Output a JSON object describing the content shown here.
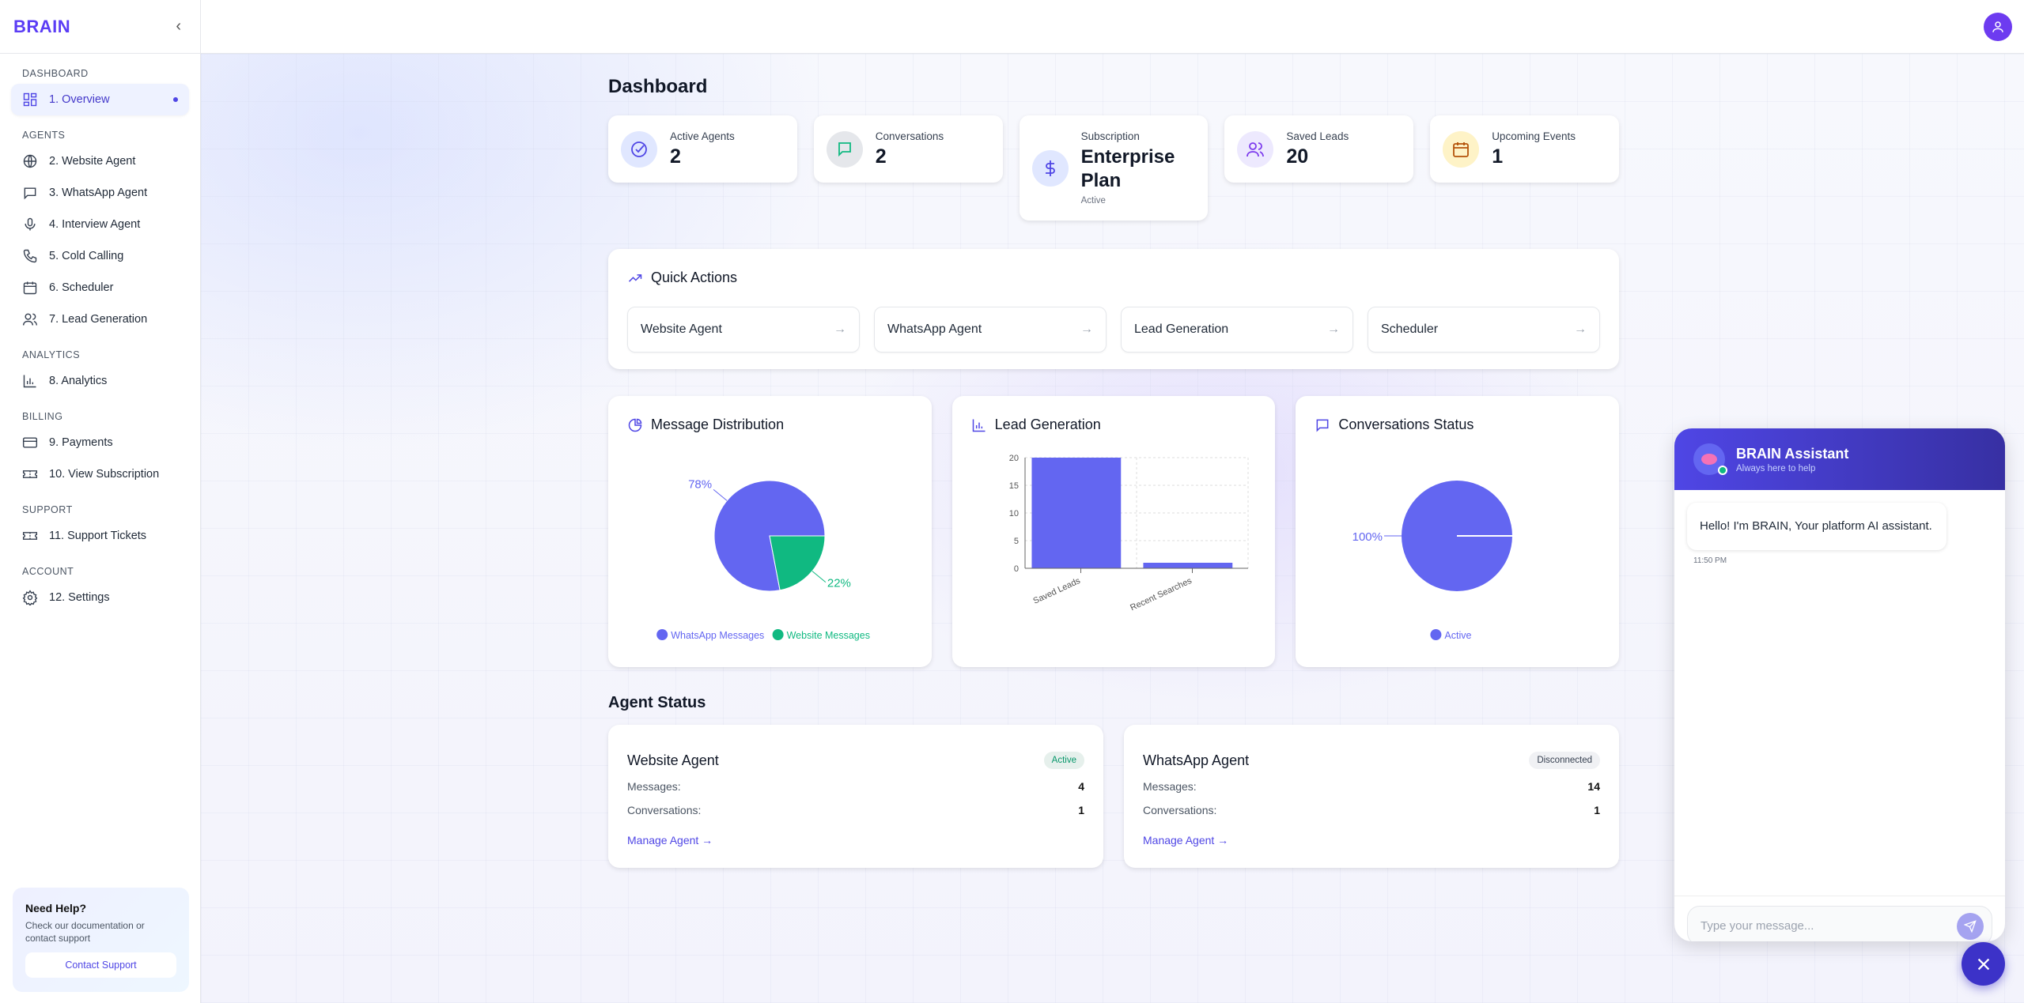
{
  "brand": "BRAIN",
  "sidebar": {
    "sections": [
      {
        "title": "DASHBOARD",
        "items": [
          {
            "label": "1. Overview",
            "icon": "layout-grid-icon",
            "active": true
          }
        ]
      },
      {
        "title": "AGENTS",
        "items": [
          {
            "label": "2. Website Agent",
            "icon": "globe-icon"
          },
          {
            "label": "3. WhatsApp Agent",
            "icon": "message-square-icon"
          },
          {
            "label": "4. Interview Agent",
            "icon": "mic-icon"
          },
          {
            "label": "5. Cold Calling",
            "icon": "phone-icon"
          },
          {
            "label": "6. Scheduler",
            "icon": "calendar-icon"
          },
          {
            "label": "7. Lead Generation",
            "icon": "users-icon"
          }
        ]
      },
      {
        "title": "ANALYTICS",
        "items": [
          {
            "label": "8. Analytics",
            "icon": "bar-chart-icon"
          }
        ]
      },
      {
        "title": "BILLING",
        "items": [
          {
            "label": "9. Payments",
            "icon": "credit-card-icon"
          },
          {
            "label": "10. View Subscription",
            "icon": "ticket-icon"
          }
        ]
      },
      {
        "title": "SUPPORT",
        "items": [
          {
            "label": "11. Support Tickets",
            "icon": "ticket-icon"
          }
        ]
      },
      {
        "title": "ACCOUNT",
        "items": [
          {
            "label": "12. Settings",
            "icon": "gear-icon"
          }
        ]
      }
    ],
    "help": {
      "title": "Need Help?",
      "text": "Check our documentation or contact support",
      "button": "Contact Support"
    }
  },
  "page_title": "Dashboard",
  "stats": [
    {
      "label": "Active Agents",
      "value": "2",
      "icon": "check-circle-icon",
      "color": "#4f46e5",
      "bg": "#e0e7ff"
    },
    {
      "label": "Conversations",
      "value": "2",
      "icon": "message-icon",
      "color": "#10b981",
      "bg": "#e5e7eb"
    },
    {
      "label": "Subscription",
      "value": "Enterprise Plan",
      "sub": "Active",
      "icon": "dollar-icon",
      "color": "#4f46e5",
      "bg": "#e0e7ff"
    },
    {
      "label": "Saved Leads",
      "value": "20",
      "icon": "users-icon",
      "color": "#7c3aed",
      "bg": "#ede9fe"
    },
    {
      "label": "Upcoming Events",
      "value": "1",
      "icon": "calendar-icon",
      "color": "#b45309",
      "bg": "#fef3c7"
    }
  ],
  "quick_actions": {
    "title": "Quick Actions",
    "items": [
      "Website Agent",
      "WhatsApp Agent",
      "Lead Generation",
      "Scheduler"
    ]
  },
  "chart_data": [
    {
      "type": "pie",
      "title": "Message Distribution",
      "slices": [
        {
          "name": "WhatsApp Messages",
          "value": 78,
          "label": "78%",
          "color": "#6366f1"
        },
        {
          "name": "Website Messages",
          "value": 22,
          "label": "22%",
          "color": "#10b981"
        }
      ],
      "legend": "bottom"
    },
    {
      "type": "bar",
      "title": "Lead Generation",
      "categories": [
        "Saved Leads",
        "Recent Searches"
      ],
      "values": [
        20,
        1
      ],
      "yticks": [
        "0",
        "5",
        "10",
        "15",
        "20"
      ],
      "ylim": [
        0,
        20
      ],
      "grid": true,
      "color": "#6366f1"
    },
    {
      "type": "pie",
      "title": "Conversations Status",
      "slices": [
        {
          "name": "Active",
          "value": 100,
          "label": "100%",
          "color": "#6366f1"
        }
      ],
      "legend": "bottom"
    }
  ],
  "agent_status": {
    "title": "Agent Status",
    "agents": [
      {
        "name": "Website Agent",
        "status": "Active",
        "status_color": "#059669",
        "status_bg": "#e6f0ec",
        "messages_label": "Messages:",
        "messages": "4",
        "conv_label": "Conversations:",
        "conversations": "1",
        "link": "Manage Agent →"
      },
      {
        "name": "WhatsApp Agent",
        "status": "Disconnected",
        "status_color": "#374151",
        "status_bg": "#f0f1f4",
        "messages_label": "Messages:",
        "messages": "14",
        "conv_label": "Conversations:",
        "conversations": "1",
        "link": "Manage Agent →"
      }
    ]
  },
  "chat": {
    "title": "BRAIN Assistant",
    "subtitle": "Always here to help",
    "message": "Hello! I'm BRAIN, Your platform AI assistant.",
    "time": "11:50 PM",
    "placeholder": "Type your message..."
  }
}
